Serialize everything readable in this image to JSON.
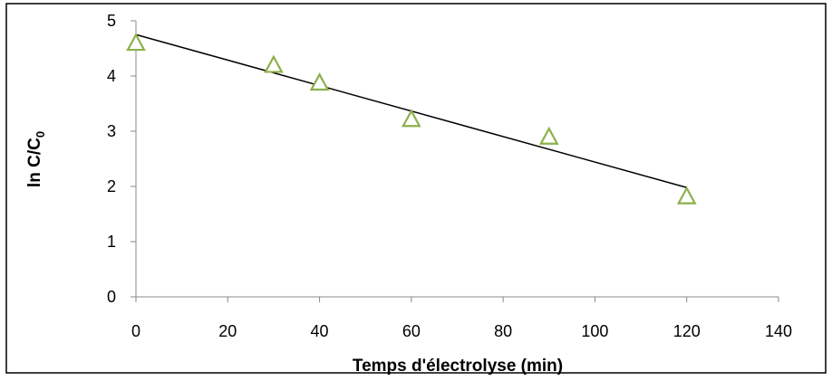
{
  "chart_data": {
    "type": "scatter",
    "xlabel": "Temps d'électrolyse (min)",
    "ylabel_main": "ln C/C",
    "ylabel_sub": "0",
    "xlim": [
      0,
      140
    ],
    "ylim": [
      0,
      5
    ],
    "xticks": [
      0,
      20,
      40,
      60,
      80,
      100,
      120,
      140
    ],
    "yticks": [
      0,
      1,
      2,
      3,
      4,
      5
    ],
    "grid": false,
    "marker": "triangle-open",
    "marker_color": "#8cb04b",
    "trendline_color": "#000000",
    "series": [
      {
        "x": [
          0,
          30,
          40,
          60,
          90,
          120
        ],
        "y": [
          4.6,
          4.2,
          3.88,
          3.22,
          2.9,
          1.82
        ]
      }
    ],
    "trendline": {
      "x": [
        0,
        120
      ],
      "y": [
        4.75,
        1.98
      ]
    }
  }
}
